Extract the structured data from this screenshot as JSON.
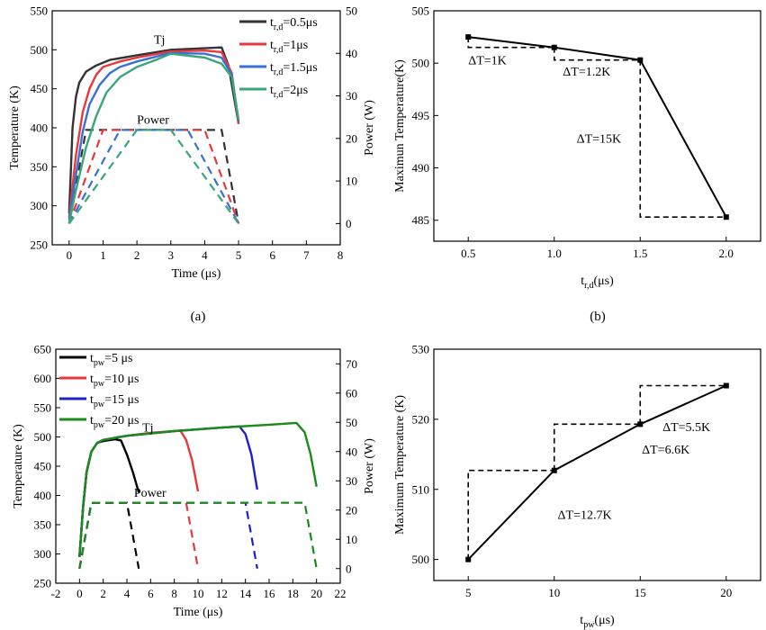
{
  "chart_data": [
    {
      "id": "a",
      "type": "line",
      "caption": "(a)",
      "xlabel": "Time (μs)",
      "ylabel": "Temperature (K)",
      "y2label": "Power (W)",
      "xlim": [
        -0.5,
        8
      ],
      "ylim": [
        250,
        550
      ],
      "y2lim": [
        -5,
        50
      ],
      "xticks": [
        0,
        1,
        2,
        3,
        4,
        5,
        6,
        7,
        8
      ],
      "yticks": [
        250,
        300,
        350,
        400,
        450,
        500,
        550
      ],
      "y2ticks": [
        0,
        10,
        20,
        30,
        40,
        50
      ],
      "legend_position": "top-right",
      "annotations": [
        {
          "text": "Tj",
          "x": 2.5,
          "y": 508
        },
        {
          "text": "Power",
          "x": 2.0,
          "y": 23.5
        }
      ],
      "series": [
        {
          "name_main": "t",
          "name_sub": "r,d",
          "name_rest": "=0.5μs",
          "color": "#333333",
          "temperature": {
            "x": [
              0,
              0.1,
              0.2,
              0.3,
              0.5,
              0.8,
              1.2,
              2,
              3,
              4,
              4.5,
              4.7,
              5
            ],
            "y": [
              290,
              400,
              440,
              458,
              472,
              480,
              487,
              493,
              500,
              502,
              503,
              480,
              405
            ]
          },
          "power": {
            "x": [
              0,
              0.5,
              4.5,
              5
            ],
            "y": [
              0,
              22,
              22,
              0
            ]
          }
        },
        {
          "name_main": "t",
          "name_sub": "r,d",
          "name_rest": "=1μs",
          "color": "#e8383b",
          "temperature": {
            "x": [
              0,
              0.2,
              0.4,
              0.6,
              0.8,
              1.0,
              1.5,
              2,
              3,
              4,
              4.5,
              4.8,
              5
            ],
            "y": [
              285,
              365,
              420,
              450,
              468,
              478,
              485,
              490,
              498,
              499,
              497,
              470,
              405
            ]
          },
          "power": {
            "x": [
              0,
              1,
              4,
              5
            ],
            "y": [
              0,
              22,
              22,
              0
            ]
          }
        },
        {
          "name_main": "t",
          "name_sub": "r,d",
          "name_rest": "=1.5μs",
          "color": "#3a6fd8",
          "temperature": {
            "x": [
              0,
              0.2,
              0.4,
              0.6,
              0.9,
              1.2,
              1.5,
              2,
              3,
              4,
              4.5,
              4.8,
              5
            ],
            "y": [
              282,
              340,
              395,
              430,
              455,
              470,
              478,
              485,
              496,
              495,
              490,
              468,
              408
            ]
          },
          "power": {
            "x": [
              0,
              1.5,
              3.5,
              5
            ],
            "y": [
              0,
              22,
              22,
              0
            ]
          }
        },
        {
          "name_main": "t",
          "name_sub": "r,d",
          "name_rest": "=2μs",
          "color": "#3aa67a",
          "temperature": {
            "x": [
              0,
              0.2,
              0.5,
              0.8,
              1.1,
              1.5,
              2,
              2.5,
              3,
              4,
              4.5,
              4.8,
              5
            ],
            "y": [
              278,
              320,
              375,
              415,
              445,
              465,
              478,
              486,
              495,
              490,
              482,
              465,
              410
            ]
          },
          "power": {
            "x": [
              0,
              2,
              3,
              5
            ],
            "y": [
              0,
              22,
              22,
              0
            ]
          }
        }
      ]
    },
    {
      "id": "b",
      "type": "line",
      "caption": "(b)",
      "xlabel_main": "t",
      "xlabel_sub": "r,d",
      "xlabel_rest": "(μs)",
      "ylabel": "Maximun Temperature(K)",
      "xlim": [
        0.3,
        2.2
      ],
      "ylim": [
        483,
        505
      ],
      "xticks": [
        0.5,
        1.0,
        1.5,
        2.0
      ],
      "xtick_labels": [
        "0.5",
        "1.0",
        "1.5",
        "2.0"
      ],
      "yticks": [
        485,
        490,
        495,
        500,
        505
      ],
      "x": [
        0.5,
        1.0,
        1.5,
        2.0
      ],
      "y": [
        502.5,
        501.5,
        500.3,
        485.3
      ],
      "annotations": [
        {
          "text": "ΔT=1K",
          "x": 0.5,
          "y": 499.9
        },
        {
          "text": "ΔT=1.2K",
          "x": 1.05,
          "y": 498.8
        },
        {
          "text": "ΔT=15K",
          "x": 1.13,
          "y": 492.4
        }
      ]
    },
    {
      "id": "c",
      "type": "line",
      "caption": "",
      "xlabel": "Time (μs)",
      "ylabel": "Temperature (K)",
      "y2label": "Power (W)",
      "xlim": [
        -2,
        22
      ],
      "ylim": [
        250,
        650
      ],
      "y2lim": [
        -5,
        75
      ],
      "xticks": [
        -2,
        0,
        2,
        4,
        6,
        8,
        10,
        12,
        14,
        16,
        18,
        20,
        22
      ],
      "yticks": [
        250,
        300,
        350,
        400,
        450,
        500,
        550,
        600,
        650
      ],
      "y2ticks": [
        0,
        10,
        20,
        30,
        40,
        50,
        60,
        70
      ],
      "legend_position": "top-left",
      "annotations": [
        {
          "text": "Tj",
          "x": 5.3,
          "y": 509
        },
        {
          "text": "Power",
          "x": 4.6,
          "y": 24.5
        }
      ],
      "series": [
        {
          "name_main": "t",
          "name_sub": "pw",
          "name_rest": "=5 μs",
          "color": "#000000",
          "temperature": {
            "x": [
              0,
              0.3,
              0.6,
              1,
              1.5,
              2,
              3,
              3.5,
              4,
              4.5,
              5
            ],
            "y": [
              295,
              380,
              440,
              475,
              490,
              493,
              496,
              494,
              470,
              440,
              405
            ]
          },
          "power": {
            "x": [
              0,
              1,
              4,
              5
            ],
            "y": [
              0,
              22.5,
              22.5,
              0
            ]
          }
        },
        {
          "name_main": "t",
          "name_sub": "pw",
          "name_rest": "=10 μs",
          "color": "#e8383b",
          "temperature": {
            "x": [
              0,
              0.3,
              0.6,
              1,
              1.5,
              2,
              4,
              6,
              8.5,
              9,
              9.5,
              10
            ],
            "y": [
              295,
              380,
              440,
              475,
              490,
              495,
              502,
              507,
              511,
              495,
              460,
              407
            ]
          },
          "power": {
            "x": [
              0,
              1,
              9,
              10
            ],
            "y": [
              0,
              22.5,
              22.5,
              0
            ]
          }
        },
        {
          "name_main": "t",
          "name_sub": "pw",
          "name_rest": "=15 μs",
          "color": "#2020c8",
          "temperature": {
            "x": [
              0,
              0.3,
              0.6,
              1,
              1.5,
              2,
              4,
              8,
              12,
              13.5,
              14,
              14.5,
              15
            ],
            "y": [
              295,
              380,
              440,
              475,
              490,
              495,
              502,
              510,
              516,
              518,
              505,
              470,
              410
            ]
          },
          "power": {
            "x": [
              0,
              1,
              14,
              15
            ],
            "y": [
              0,
              22.5,
              22.5,
              0
            ]
          }
        },
        {
          "name_main": "t",
          "name_sub": "pw",
          "name_rest": "=20 μs",
          "color": "#1a8a1a",
          "temperature": {
            "x": [
              0,
              0.3,
              0.6,
              1,
              1.5,
              2,
              4,
              8,
              12,
              16,
              18.3,
              19,
              19.5,
              20
            ],
            "y": [
              295,
              380,
              440,
              475,
              490,
              495,
              502,
              510,
              516,
              521,
              524,
              508,
              470,
              415
            ]
          },
          "power": {
            "x": [
              0,
              1,
              19,
              20
            ],
            "y": [
              0,
              22.5,
              22.5,
              0
            ]
          }
        }
      ]
    },
    {
      "id": "d",
      "type": "line",
      "caption": "",
      "xlabel_main": "t",
      "xlabel_sub": "pw",
      "xlabel_rest": "(μs)",
      "ylabel": "Maximum Temperature (K)",
      "xlim": [
        3,
        22
      ],
      "ylim": [
        497,
        530
      ],
      "xticks": [
        5,
        10,
        15,
        20
      ],
      "xtick_labels": [
        "5",
        "10",
        "15",
        "20"
      ],
      "yticks": [
        500,
        510,
        520,
        530
      ],
      "x": [
        5,
        10,
        15,
        20
      ],
      "y": [
        500,
        512.7,
        519.3,
        524.8
      ],
      "annotations": [
        {
          "text": "ΔT=12.7K",
          "x": 10.2,
          "y": 505.8
        },
        {
          "text": "ΔT=6.6K",
          "x": 15.1,
          "y": 515.1
        },
        {
          "text": "ΔT=5.5K",
          "x": 16.3,
          "y": 518.3
        }
      ]
    }
  ]
}
